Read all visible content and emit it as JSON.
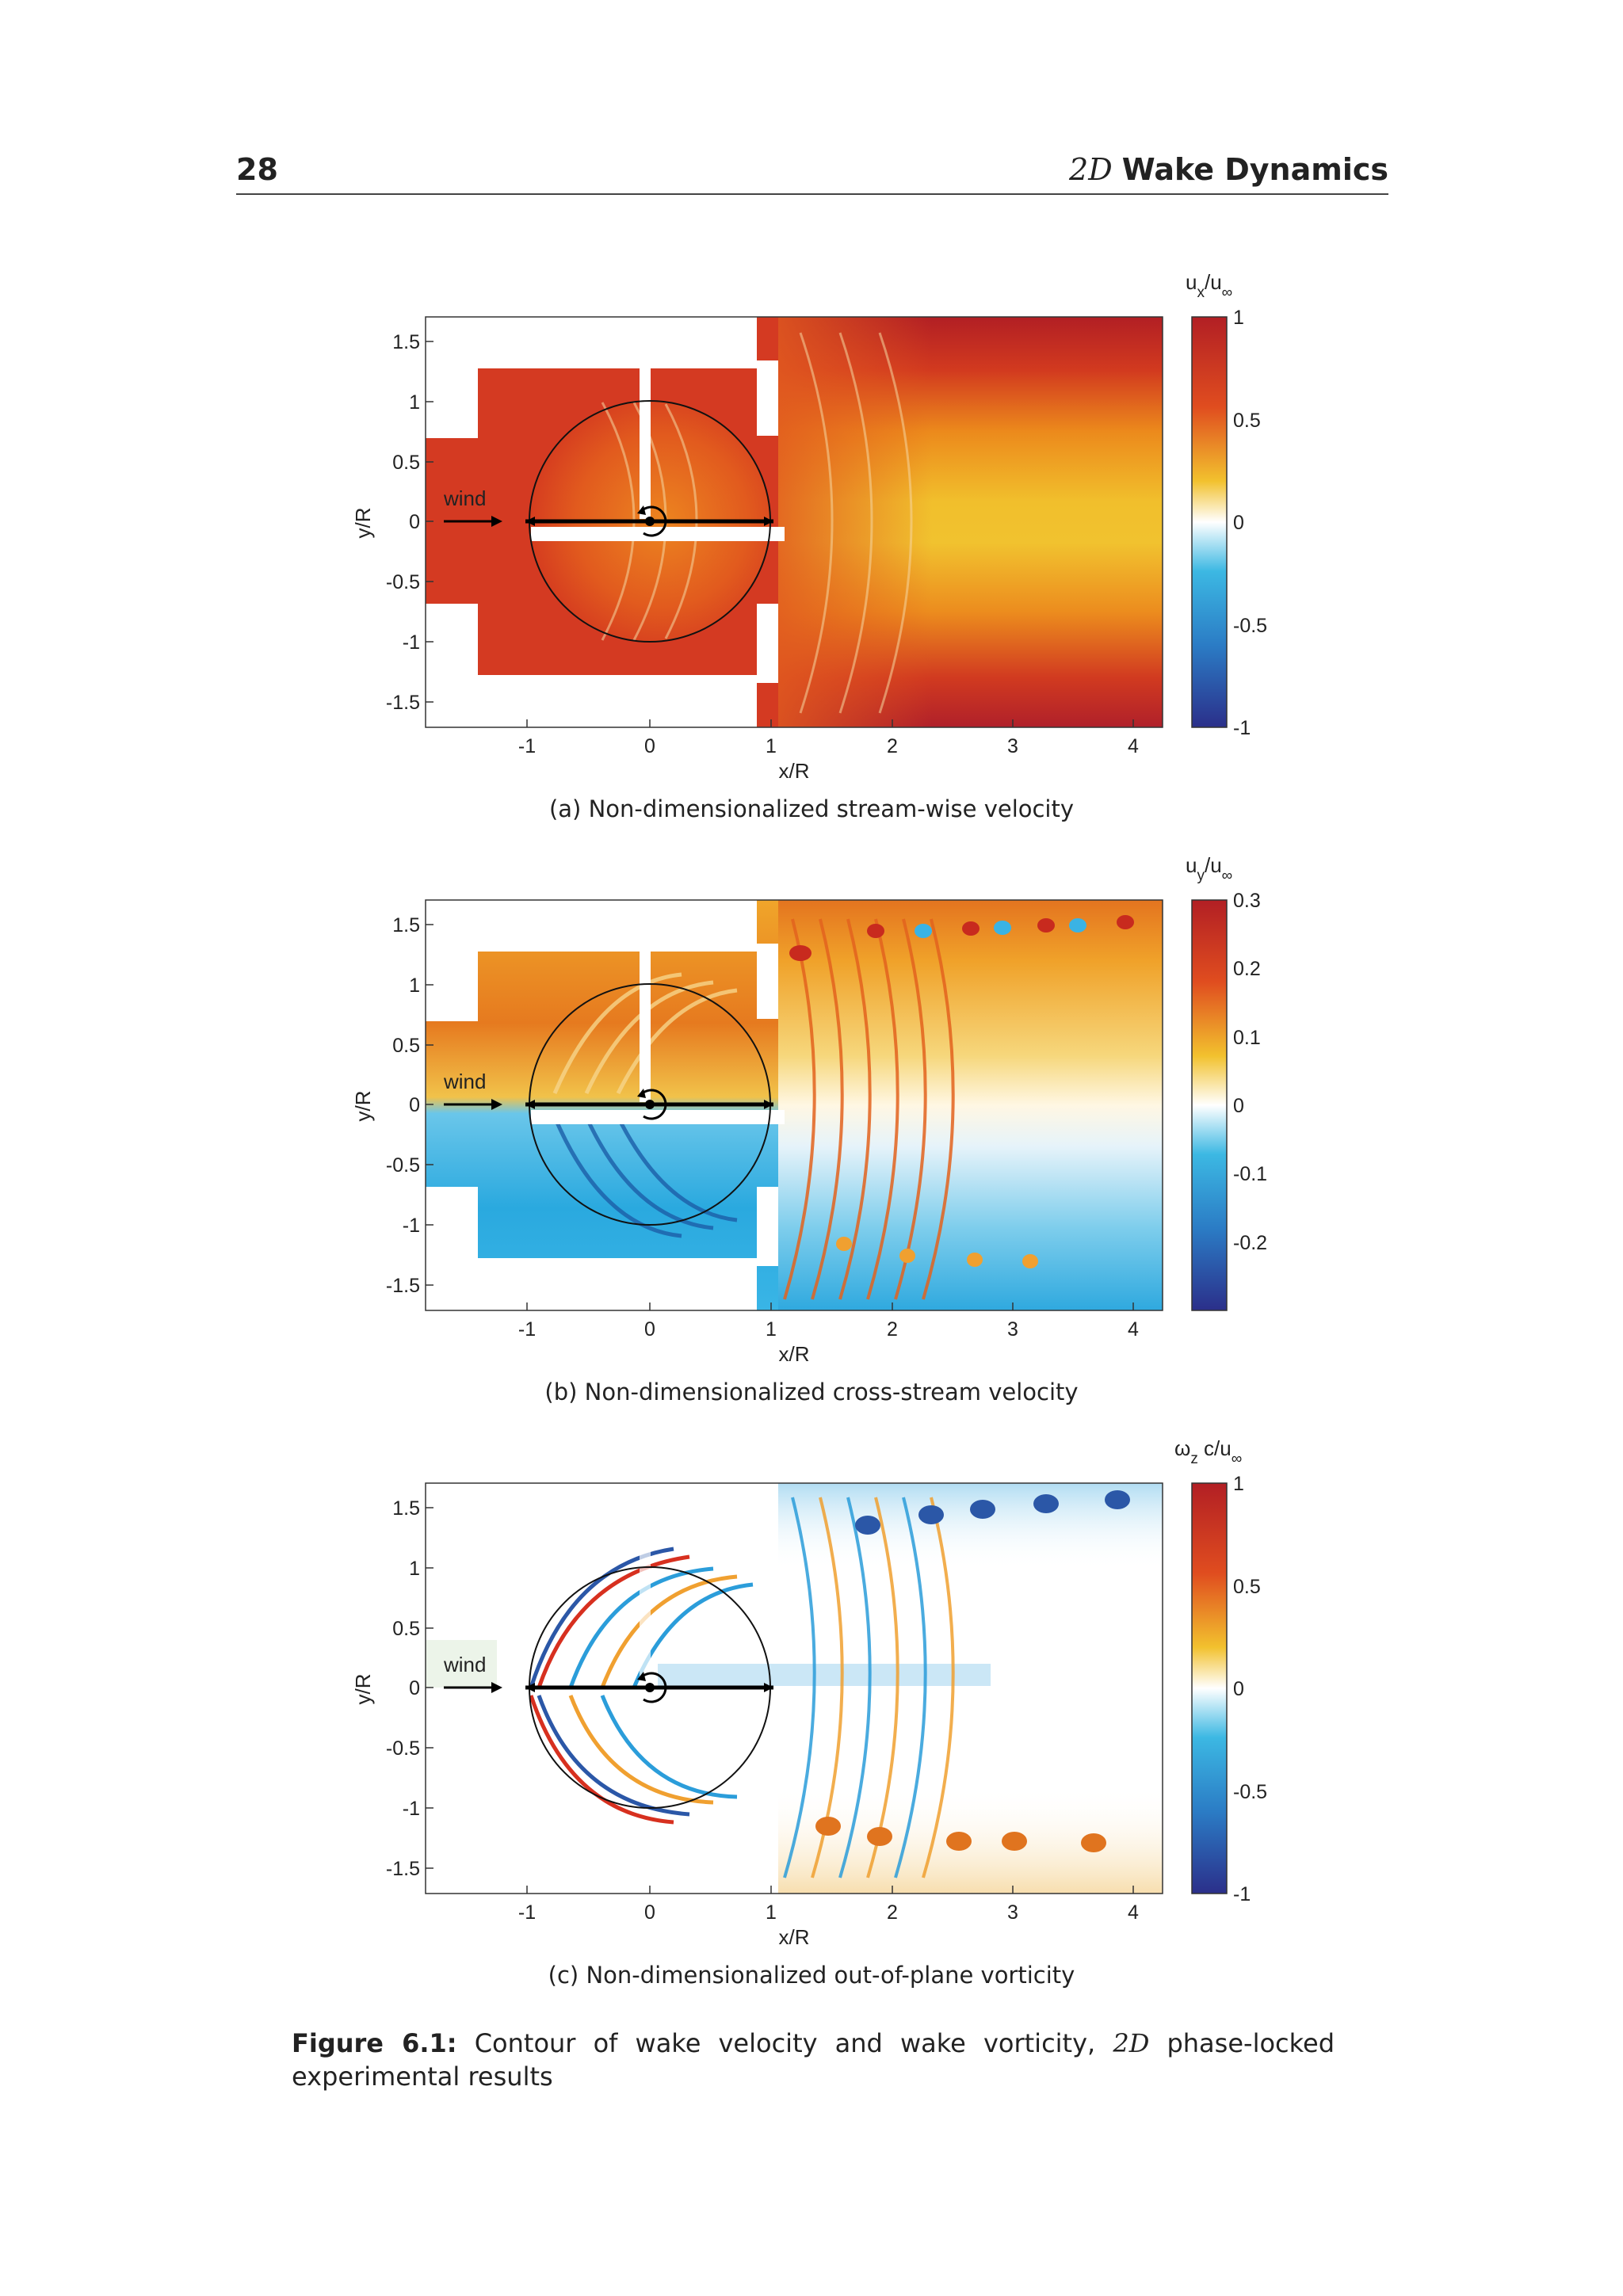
{
  "header": {
    "page_number": "28",
    "title_math": "2D",
    "title_text": "Wake Dynamics"
  },
  "figure": {
    "panels": [
      {
        "id": "a",
        "subcaption": "(a) Non-dimensionalized stream-wise velocity",
        "colorbar_label": "u",
        "colorbar_sub": "x",
        "colorbar_label2": "/u",
        "colorbar_sub2": "∞",
        "colorbar_ticks": [
          "1",
          "0.5",
          "0",
          "-0.5",
          "-1"
        ],
        "wind_label": "wind",
        "xlabel": "x/R",
        "ylabel": "y/R",
        "x_ticks": [
          "-1",
          "0",
          "1",
          "2",
          "3",
          "4"
        ],
        "y_ticks": [
          "1.5",
          "1",
          "0.5",
          "0",
          "-0.5",
          "-1",
          "-1.5"
        ],
        "color_range": [
          -1,
          1
        ]
      },
      {
        "id": "b",
        "subcaption": "(b) Non-dimensionalized cross-stream velocity",
        "colorbar_label": "u",
        "colorbar_sub": "y",
        "colorbar_label2": "/u",
        "colorbar_sub2": "∞",
        "colorbar_ticks": [
          "0.3",
          "0.2",
          "0.1",
          "0",
          "-0.1",
          "-0.2"
        ],
        "wind_label": "wind",
        "xlabel": "x/R",
        "ylabel": "y/R",
        "x_ticks": [
          "-1",
          "0",
          "1",
          "2",
          "3",
          "4"
        ],
        "y_ticks": [
          "1.5",
          "1",
          "0.5",
          "0",
          "-0.5",
          "-1",
          "-1.5"
        ],
        "color_range": [
          -0.3,
          0.3
        ]
      },
      {
        "id": "c",
        "subcaption": "(c) Non-dimensionalized out-of-plane vorticity",
        "colorbar_label": "ω",
        "colorbar_sub": "z",
        "colorbar_label2": " c/u",
        "colorbar_sub2": "∞",
        "colorbar_ticks": [
          "1",
          "0.5",
          "0",
          "-0.5",
          "-1"
        ],
        "wind_label": "wind",
        "xlabel": "x/R",
        "ylabel": "y/R",
        "x_ticks": [
          "-1",
          "0",
          "1",
          "2",
          "3",
          "4"
        ],
        "y_ticks": [
          "1.5",
          "1",
          "0.5",
          "0",
          "-0.5",
          "-1",
          "-1.5"
        ],
        "color_range": [
          -1,
          1
        ]
      }
    ],
    "caption_label": "Figure 6.1:",
    "caption_text_1": " Contour of wake velocity and wake vorticity, ",
    "caption_math": "2D",
    "caption_text_2": " phase-locked experimental results"
  },
  "colors": {
    "deep_red": "#b21f24",
    "red": "#d7301f",
    "orange": "#ee8a1c",
    "yellow": "#f2c12e",
    "white": "#ffffff",
    "cyan": "#2fb1df",
    "blue": "#2b57a7",
    "navy": "#2b2f8a"
  }
}
